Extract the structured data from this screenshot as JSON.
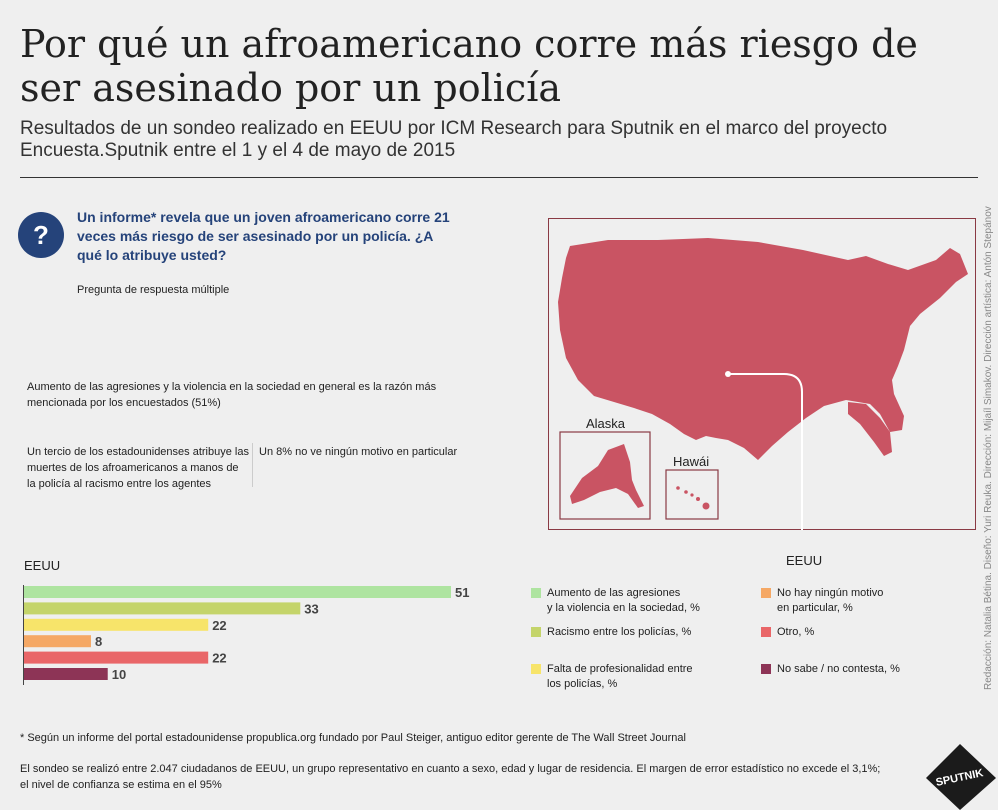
{
  "header": {
    "title": "Por qué un afroamericano corre más riesgo de ser asesinado por un policía",
    "subtitle": "Resultados de un sondeo realizado en EEUU por ICM Research para Sputnik en el marco del proyecto Encuesta.Sputnik entre el 1 y el 4 de mayo de 2015"
  },
  "question": {
    "icon": "?",
    "text": "Un informe* revela que un joven afroamericano corre 21 veces más riesgo de ser asesinado por un policía. ¿A qué lo atribuye usted?",
    "note": "Pregunta de respuesta múltiple"
  },
  "findings": {
    "main": "Aumento de las agresiones y la violencia en la sociedad en general es la razón más mencionada por los encuestados (51%)",
    "third": "Un tercio de los estadounidenses atribuye las muertes de los afroamericanos a manos de la policía al racismo entre los agentes",
    "eight": "Un 8% no ve ningún motivo en particular"
  },
  "map": {
    "alaska": "Alaska",
    "hawaii": "Hawái",
    "country": "EEUU"
  },
  "chart_data": {
    "type": "bar",
    "title": "EEUU",
    "categories": [
      "Aumento de las agresiones y la violencia en la sociedad, %",
      "Racismo entre los policías, %",
      "Falta de profesionalidad entre los policías, %",
      "No hay ningún motivo en particular, %",
      "Otro, %",
      "No sabe / no contesta, %"
    ],
    "values": [
      51,
      33,
      22,
      8,
      22,
      10
    ],
    "colors": [
      "#aee4a0",
      "#c4d46a",
      "#f7e46a",
      "#f5a865",
      "#e96668",
      "#8d3456"
    ],
    "xlim": [
      0,
      51
    ],
    "orientation": "horizontal",
    "data_labels": [
      "51",
      "33",
      "22",
      "8",
      "22",
      "10"
    ]
  },
  "legend": {
    "items": [
      {
        "label1": "Aumento de las agresiones",
        "label2": "y la violencia en la sociedad, %",
        "color": "#aee4a0"
      },
      {
        "label1": "Racismo entre los policías, %",
        "label2": "",
        "color": "#c4d46a"
      },
      {
        "label1": "Falta de profesionalidad entre",
        "label2": "los policías, %",
        "color": "#f7e46a"
      },
      {
        "label1": "No hay ningún motivo",
        "label2": "en particular, %",
        "color": "#f5a865"
      },
      {
        "label1": "Otro, %",
        "label2": "",
        "color": "#e96668"
      },
      {
        "label1": "No sabe / no contesta, %",
        "label2": "",
        "color": "#8d3456"
      }
    ]
  },
  "footnotes": {
    "source": "* Según un informe del portal estadounidense propublica.org fundado por Paul Steiger, antiguo editor gerente de The Wall Street Journal",
    "method1": "El sondeo se realizó entre 2.047 ciudadanos de EEUU, un grupo representativo en cuanto a sexo, edad y lugar de residencia. El margen de error estadístico no excede el 3,1%;",
    "method2": "el nivel de confianza se estima en el 95%"
  },
  "credits": "Redacción: Natalia Bétina. Diseño: Yuri Reuka. Dirección: Mijaíl Simakov. Dirección artística: Antón Stepánov",
  "brand": {
    "logo_text": "SPUTNIK",
    "accent": "#25437a",
    "map_color": "#c95463"
  }
}
